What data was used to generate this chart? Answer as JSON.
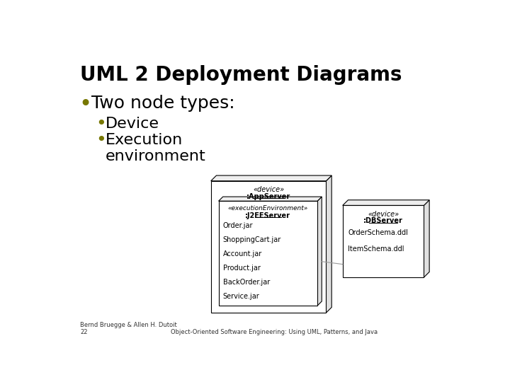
{
  "title": "UML 2 Deployment Diagrams",
  "bullet1": "Two node types:",
  "bullet2a": "Device",
  "bullet2b": "Execution\nenvironment",
  "footer_left": "Bernd Bruegge & Allen H. Dutoit\n22",
  "footer_right": "Object-Oriented Software Engineering: Using UML, Patterns, and Java",
  "appserver_stereotype": "«device»",
  "appserver_name": ":AppServer",
  "j2ee_stereotype": "«executionEnvironment»",
  "j2ee_name": ":J2EEServer",
  "j2ee_items": [
    "Order.jar",
    "ShoppingCart.jar",
    "Account.jar",
    "Product.jar",
    "BackOrder.jar",
    "Service.jar"
  ],
  "dbserver_stereotype": "«device»",
  "dbserver_name": ":DBServer",
  "dbserver_items": [
    "OrderSchema.ddl",
    "ItemSchema.ddl"
  ],
  "bg_color": "#ffffff",
  "box_face": "#ffffff",
  "box_edge": "#000000",
  "side_face": "#e0e0e0",
  "top_face": "#eeeeee",
  "title_fontsize": 20,
  "bullet_fontsize": 18,
  "sub_bullet_fontsize": 16,
  "diagram_fontsize": 7,
  "footer_fontsize": 6,
  "bullet_color": "#777700"
}
